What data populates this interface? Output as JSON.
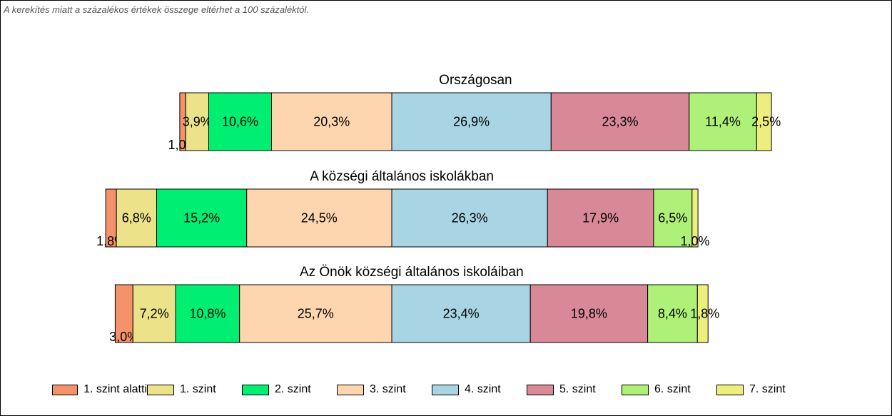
{
  "note": "A kerekítés miatt a  százalékos értékek összege eltérhet a 100 százaléktól.",
  "chart_data": {
    "type": "bar",
    "orientation": "horizontal-stacked",
    "unit": "%",
    "series": [
      {
        "name": "1. szint alatti",
        "color": "#f4936b"
      },
      {
        "name": "1. szint",
        "color": "#ece28a"
      },
      {
        "name": "2. szint",
        "color": "#00ef72"
      },
      {
        "name": "3. szint",
        "color": "#fdd6b0"
      },
      {
        "name": "4. szint",
        "color": "#a8d4e4"
      },
      {
        "name": "5. szint",
        "color": "#d88897"
      },
      {
        "name": "6. szint",
        "color": "#aff079"
      },
      {
        "name": "7. szint",
        "color": "#eeee7e"
      }
    ],
    "bars": [
      {
        "title": "Országosan",
        "values": [
          1.0,
          3.9,
          10.6,
          20.3,
          26.9,
          23.3,
          11.4,
          2.5
        ],
        "labels": [
          "1,0%",
          "3,9%",
          "10,6%",
          "20,3%",
          "26,9%",
          "23,3%",
          "11,4%",
          "2,5%"
        ]
      },
      {
        "title": "A községi általános iskolákban",
        "values": [
          1.8,
          6.8,
          15.2,
          24.5,
          26.3,
          17.9,
          6.5,
          1.0
        ],
        "labels": [
          "1,8%",
          "6,8%",
          "15,2%",
          "24,5%",
          "26,3%",
          "17,9%",
          "6,5%",
          "1,0%"
        ]
      },
      {
        "title": "Az Önök községi általános iskoláiban",
        "values": [
          3.0,
          7.2,
          10.8,
          25.7,
          23.4,
          19.8,
          8.4,
          1.8
        ],
        "labels": [
          "3,0%",
          "7,2%",
          "10,8%",
          "25,7%",
          "23,4%",
          "19,8%",
          "8,4%",
          "1,8%"
        ]
      }
    ],
    "legend_position": "bottom"
  }
}
